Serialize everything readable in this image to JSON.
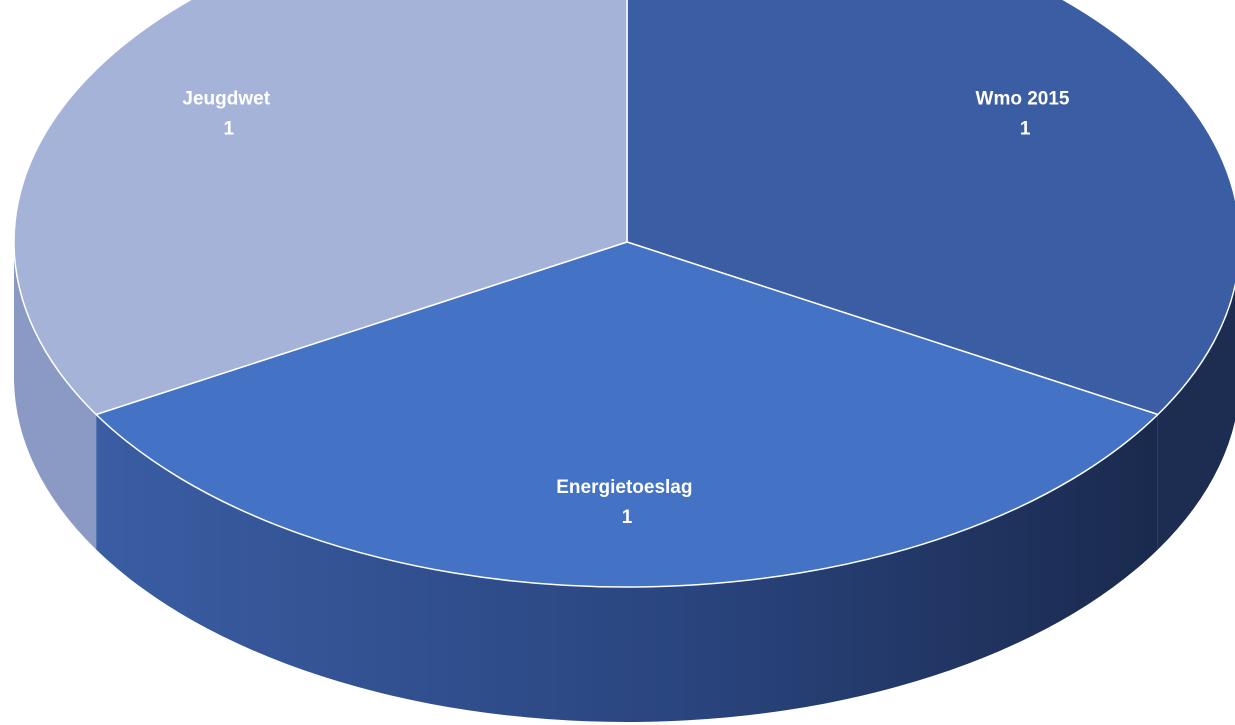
{
  "chart_data": {
    "type": "pie",
    "style": "3d",
    "labels": [
      "Wmo 2015",
      "Energietoeslag",
      "Jeugdwet"
    ],
    "values": [
      1,
      1,
      1
    ],
    "data_labels": [
      "1",
      "1",
      "1"
    ],
    "colors": [
      "#3A5DA3",
      "#4472C4",
      "#A5B3D8"
    ],
    "side_colors": [
      "#1D2D52",
      "#2B4A86",
      "#8A9AC4"
    ],
    "title": "",
    "legend": "none"
  }
}
